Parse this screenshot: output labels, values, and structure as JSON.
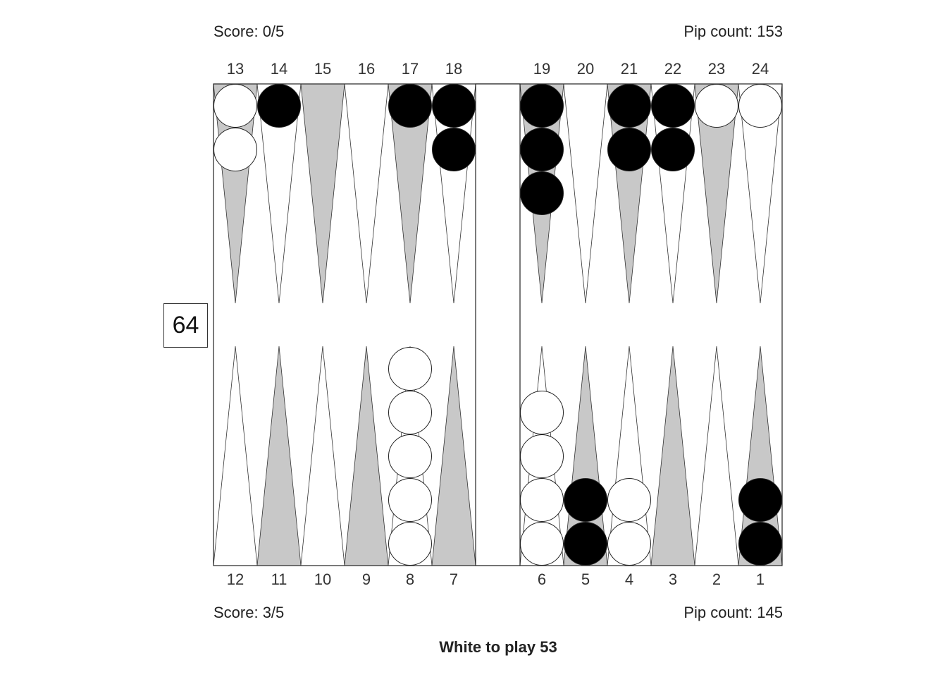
{
  "top_score": "Score: 0/5",
  "top_pip": "Pip count: 153",
  "bottom_score": "Score: 3/5",
  "bottom_pip": "Pip count: 145",
  "cube_value": "64",
  "caption": "White to play 53",
  "top_point_labels": [
    "13",
    "14",
    "15",
    "16",
    "17",
    "18",
    "19",
    "20",
    "21",
    "22",
    "23",
    "24"
  ],
  "bottom_point_labels": [
    "12",
    "11",
    "10",
    "9",
    "8",
    "7",
    "6",
    "5",
    "4",
    "3",
    "2",
    "1"
  ],
  "colors": {
    "dark_triangle": "#c8c8c8",
    "black_checker": "#000000",
    "white_checker": "#ffffff"
  },
  "checkers": {
    "top": [
      {
        "point": "13",
        "color": "white",
        "count": 2
      },
      {
        "point": "14",
        "color": "black",
        "count": 1
      },
      {
        "point": "15",
        "color": "",
        "count": 0
      },
      {
        "point": "16",
        "color": "",
        "count": 0
      },
      {
        "point": "17",
        "color": "black",
        "count": 1
      },
      {
        "point": "18",
        "color": "black",
        "count": 2
      },
      {
        "point": "19",
        "color": "black",
        "count": 3
      },
      {
        "point": "20",
        "color": "",
        "count": 0
      },
      {
        "point": "21",
        "color": "black",
        "count": 2
      },
      {
        "point": "22",
        "color": "black",
        "count": 2
      },
      {
        "point": "23",
        "color": "white",
        "count": 1
      },
      {
        "point": "24",
        "color": "white",
        "count": 1
      }
    ],
    "bottom": [
      {
        "point": "12",
        "color": "",
        "count": 0
      },
      {
        "point": "11",
        "color": "",
        "count": 0
      },
      {
        "point": "10",
        "color": "",
        "count": 0
      },
      {
        "point": "9",
        "color": "",
        "count": 0
      },
      {
        "point": "8",
        "color": "white",
        "count": 5
      },
      {
        "point": "7",
        "color": "",
        "count": 0
      },
      {
        "point": "6",
        "color": "white",
        "count": 4
      },
      {
        "point": "5",
        "color": "black",
        "count": 2
      },
      {
        "point": "4",
        "color": "white",
        "count": 2
      },
      {
        "point": "3",
        "color": "",
        "count": 0
      },
      {
        "point": "2",
        "color": "",
        "count": 0
      },
      {
        "point": "1",
        "color": "black",
        "count": 2
      }
    ]
  }
}
